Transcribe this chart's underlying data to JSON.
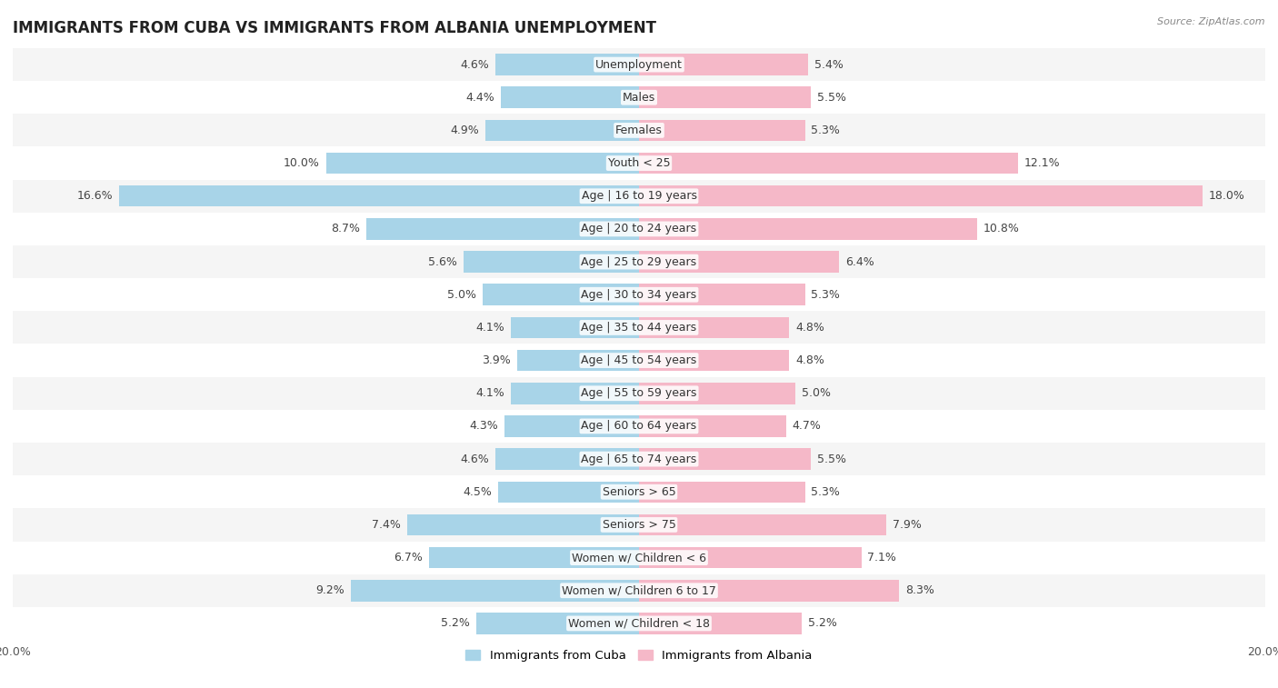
{
  "title": "IMMIGRANTS FROM CUBA VS IMMIGRANTS FROM ALBANIA UNEMPLOYMENT",
  "source": "Source: ZipAtlas.com",
  "categories": [
    "Unemployment",
    "Males",
    "Females",
    "Youth < 25",
    "Age | 16 to 19 years",
    "Age | 20 to 24 years",
    "Age | 25 to 29 years",
    "Age | 30 to 34 years",
    "Age | 35 to 44 years",
    "Age | 45 to 54 years",
    "Age | 55 to 59 years",
    "Age | 60 to 64 years",
    "Age | 65 to 74 years",
    "Seniors > 65",
    "Seniors > 75",
    "Women w/ Children < 6",
    "Women w/ Children 6 to 17",
    "Women w/ Children < 18"
  ],
  "cuba_values": [
    4.6,
    4.4,
    4.9,
    10.0,
    16.6,
    8.7,
    5.6,
    5.0,
    4.1,
    3.9,
    4.1,
    4.3,
    4.6,
    4.5,
    7.4,
    6.7,
    9.2,
    5.2
  ],
  "albania_values": [
    5.4,
    5.5,
    5.3,
    12.1,
    18.0,
    10.8,
    6.4,
    5.3,
    4.8,
    4.8,
    5.0,
    4.7,
    5.5,
    5.3,
    7.9,
    7.1,
    8.3,
    5.2
  ],
  "cuba_color": "#a8d4e8",
  "albania_color": "#f5b8c8",
  "cuba_label": "Immigrants from Cuba",
  "albania_label": "Immigrants from Albania",
  "xlim": 20.0,
  "background_color": "#ffffff",
  "row_colors_odd": "#f5f5f5",
  "row_colors_even": "#ffffff",
  "title_fontsize": 12,
  "bar_height": 0.65,
  "label_fontsize": 9,
  "category_fontsize": 9,
  "axis_label_fontsize": 9
}
